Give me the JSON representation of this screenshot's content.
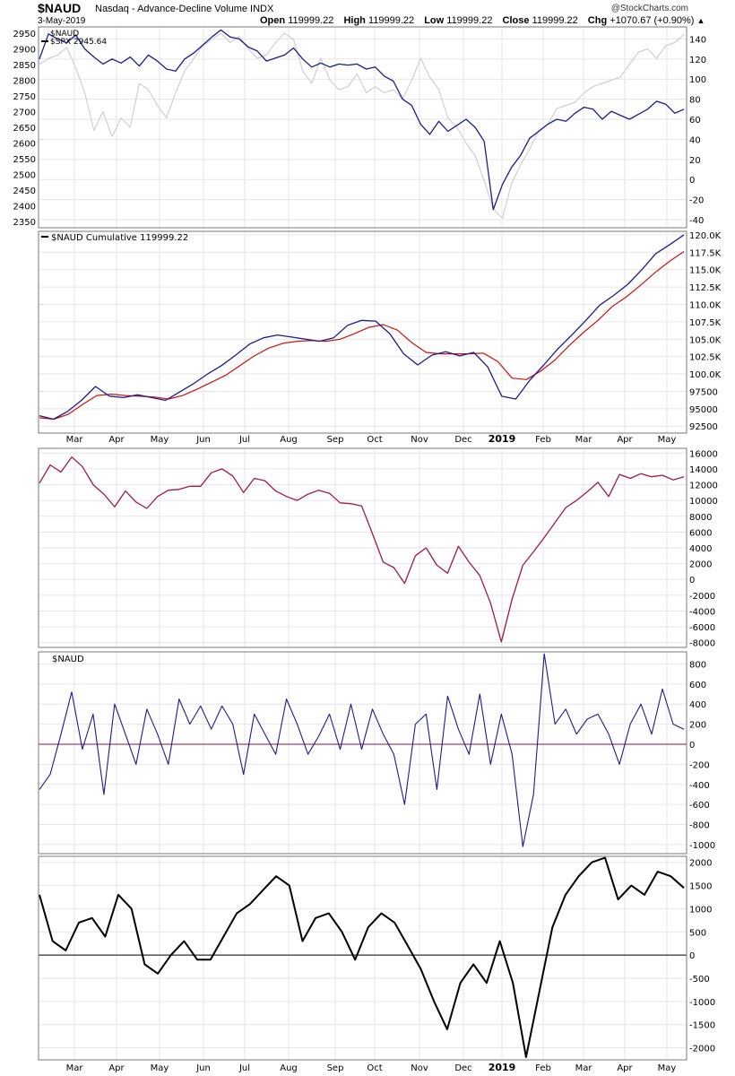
{
  "header": {
    "symbol": "$NAUD",
    "description": "Nasdaq - Advance-Decline Volume INDX",
    "date": "3-May-2019",
    "open_label": "Open",
    "open": "119999.22",
    "high_label": "High",
    "high": "119999.22",
    "low_label": "Low",
    "low": "119999.22",
    "close_label": "Close",
    "close": "119999.22",
    "chg_label": "Chg",
    "chg": "+1070.67 (+0.90%)",
    "credit": "@StockCharts.com"
  },
  "x_axis": {
    "month_labels": [
      "Mar",
      "Apr",
      "May",
      "Jun",
      "Jul",
      "Aug",
      "Sep",
      "Oct",
      "Nov",
      "Dec",
      "2019",
      "Feb",
      "Mar",
      "Apr",
      "May"
    ],
    "bold_label": "2019"
  },
  "colors": {
    "spx": "#d0d0d0",
    "naud": "#1c1c8c",
    "ema": "#d01010",
    "osc": "#a01848",
    "zero": "#8c1040",
    "smooth": "#000000",
    "grid": "#e6e6e6"
  },
  "chart_data": [
    {
      "type": "line",
      "panel": "price",
      "legend": [
        {
          "name": "$NAUD"
        },
        {
          "name": "$SPX",
          "value": "2945.64"
        }
      ],
      "left_axis": {
        "ticks": [
          2350,
          2400,
          2450,
          2500,
          2550,
          2600,
          2650,
          2700,
          2750,
          2800,
          2850,
          2900,
          2950
        ],
        "range": [
          2330,
          2970
        ]
      },
      "right_axis": {
        "ticks": [
          -40,
          -20,
          0,
          20,
          40,
          60,
          80,
          100,
          120,
          140
        ],
        "range": [
          -48,
          152
        ]
      },
      "series": [
        {
          "name": "$SPX",
          "axis": "left",
          "values": [
            2850,
            2870,
            2880,
            2905,
            2840,
            2760,
            2640,
            2700,
            2620,
            2680,
            2650,
            2790,
            2770,
            2720,
            2680,
            2760,
            2830,
            2870,
            2910,
            2930,
            2950,
            2920,
            2940,
            2900,
            2870,
            2880,
            2920,
            2950,
            2930,
            2830,
            2790,
            2870,
            2800,
            2770,
            2780,
            2820,
            2760,
            2780,
            2760,
            2770,
            2740,
            2800,
            2870,
            2810,
            2770,
            2680,
            2650,
            2600,
            2560,
            2480,
            2390,
            2360,
            2470,
            2530,
            2580,
            2640,
            2660,
            2710,
            2720,
            2730,
            2760,
            2780,
            2790,
            2800,
            2810,
            2850,
            2890,
            2900,
            2870,
            2910,
            2920,
            2945.64
          ]
        },
        {
          "name": "$NAUD",
          "axis": "right",
          "values": [
            120,
            145,
            140,
            136,
            144,
            130,
            122,
            115,
            120,
            116,
            122,
            113,
            124,
            118,
            110,
            108,
            120,
            126,
            134,
            142,
            149,
            142,
            140,
            132,
            128,
            118,
            121,
            124,
            131,
            120,
            112,
            116,
            112,
            115,
            114,
            115,
            110,
            112,
            103,
            98,
            80,
            74,
            55,
            45,
            58,
            48,
            54,
            60,
            52,
            38,
            -30,
            -5,
            12,
            24,
            41,
            48,
            55,
            60,
            58,
            66,
            72,
            70,
            60,
            68,
            64,
            60,
            65,
            70,
            78,
            75,
            66,
            70
          ]
        }
      ]
    },
    {
      "type": "line",
      "panel": "cumulative",
      "legend": [
        {
          "name": "$NAUD Cumulative",
          "value": "119999.22"
        }
      ],
      "right_axis": {
        "ticks": [
          "92500",
          "95000",
          "97500",
          "100.0K",
          "102.5K",
          "105.0K",
          "107.5K",
          "110.0K",
          "112.5K",
          "115.0K",
          "117.5K",
          "120.0K"
        ],
        "range": [
          91500,
          120500
        ]
      },
      "series": [
        {
          "name": "$NAUD Cumulative",
          "values": [
            94000,
            93500,
            94600,
            96200,
            98200,
            96800,
            96600,
            97000,
            96600,
            96200,
            97400,
            98600,
            100000,
            101200,
            102700,
            104300,
            105200,
            105600,
            105300,
            105000,
            104700,
            105200,
            107000,
            107700,
            107600,
            105800,
            102900,
            101300,
            102700,
            103200,
            102600,
            103100,
            101000,
            96800,
            96400,
            99100,
            101300,
            103600,
            105600,
            107700,
            109900,
            111300,
            112900,
            115000,
            117300,
            118600,
            120000
          ]
        },
        {
          "name": "EMA",
          "values": [
            93700,
            93500,
            94200,
            95600,
            96900,
            97100,
            96900,
            96800,
            96700,
            96400,
            96900,
            97800,
            98800,
            99800,
            101200,
            102600,
            103700,
            104400,
            104700,
            104800,
            104700,
            105000,
            105800,
            106700,
            107100,
            106300,
            104500,
            103100,
            102900,
            102900,
            102900,
            103000,
            101800,
            99400,
            99200,
            100400,
            102000,
            104100,
            106000,
            107700,
            109700,
            111100,
            112800,
            114600,
            116200,
            117600
          ]
        }
      ]
    },
    {
      "type": "line",
      "panel": "oscillator",
      "right_axis": {
        "ticks": [
          -8000,
          -6000,
          -4000,
          -2000,
          0,
          2000,
          4000,
          6000,
          8000,
          10000,
          12000,
          14000,
          16000
        ],
        "range": [
          -8600,
          16600
        ]
      },
      "series": [
        {
          "name": "oscillator",
          "values": [
            12200,
            14500,
            13600,
            15500,
            14300,
            12000,
            10800,
            9200,
            11200,
            9800,
            9000,
            10500,
            11300,
            11400,
            11800,
            11800,
            13500,
            14000,
            13100,
            11000,
            12800,
            12500,
            11200,
            10500,
            10000,
            10800,
            11300,
            10900,
            9700,
            9600,
            9300,
            5800,
            2200,
            1500,
            -500,
            3000,
            4000,
            1800,
            800,
            4200,
            2200,
            500,
            -3000,
            -7900,
            -2500,
            1800,
            3500,
            5300,
            7200,
            9100,
            10000,
            11100,
            12300,
            10500,
            13300,
            12800,
            13400,
            13000,
            13200,
            12600,
            13000
          ]
        }
      ]
    },
    {
      "type": "line",
      "panel": "$NAUD",
      "legend": [
        {
          "name": "$NAUD"
        }
      ],
      "right_axis": {
        "ticks": [
          -1000,
          -800,
          -600,
          -400,
          -200,
          0,
          200,
          400,
          600,
          800
        ],
        "range": [
          -1090,
          920
        ]
      },
      "series": [
        {
          "name": "$NAUD",
          "values": [
            -450,
            -300,
            100,
            520,
            -50,
            300,
            -500,
            400,
            100,
            -200,
            350,
            100,
            -200,
            450,
            200,
            380,
            150,
            380,
            200,
            -300,
            300,
            100,
            -100,
            450,
            200,
            -100,
            80,
            300,
            -50,
            400,
            -50,
            350,
            100,
            -100,
            -600,
            200,
            300,
            -450,
            480,
            150,
            -100,
            500,
            -200,
            300,
            -100,
            -1020,
            -500,
            900,
            200,
            350,
            100,
            250,
            300,
            100,
            -200,
            200,
            400,
            100,
            550,
            200,
            150
          ]
        }
      ]
    },
    {
      "type": "line",
      "panel": "smoothed",
      "right_axis": {
        "ticks": [
          -2000,
          -1500,
          -1000,
          -500,
          0,
          500,
          1000,
          1500,
          2000
        ],
        "range": [
          -2260,
          2130
        ]
      },
      "series": [
        {
          "name": "smoothed",
          "values": [
            1300,
            300,
            100,
            700,
            800,
            400,
            1300,
            1000,
            -200,
            -400,
            0,
            300,
            -100,
            -100,
            400,
            900,
            1100,
            1400,
            1700,
            1500,
            300,
            800,
            900,
            500,
            -100,
            600,
            900,
            700,
            200,
            -300,
            -1000,
            -1600,
            -600,
            -200,
            -600,
            300,
            -600,
            -2200,
            -800,
            600,
            1300,
            1700,
            2000,
            2100,
            1200,
            1500,
            1300,
            1800,
            1700,
            1450
          ]
        }
      ]
    }
  ]
}
